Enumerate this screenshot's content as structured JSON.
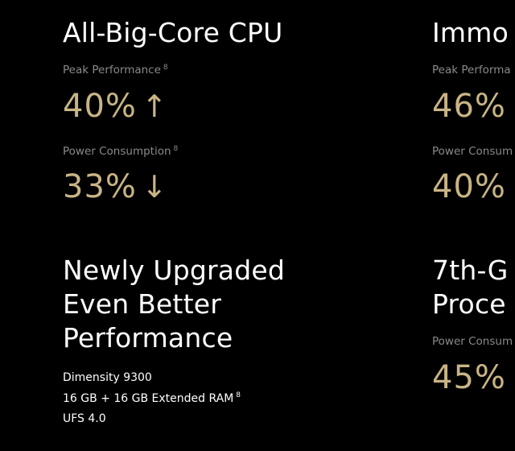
{
  "left_column": {
    "cpu_heading": "All-Big-Core CPU",
    "peak_label": "Peak Performance",
    "peak_note": "8",
    "peak_value": "40%",
    "peak_arrow": "↑",
    "power_label": "Power Consumption",
    "power_note": "8",
    "power_value": "33%",
    "power_arrow": "↓",
    "upgrade_heading_line1": "Newly Upgraded",
    "upgrade_heading_line2": "Even Better",
    "upgrade_heading_line3": "Performance",
    "spec_chip": "Dimensity 9300",
    "spec_ram": "16 GB + 16 GB Extended RAM",
    "spec_ram_note": "8",
    "spec_storage": "UFS 4.0"
  },
  "right_column": {
    "heading_top": "Immo",
    "peak_label": "Peak Performa",
    "peak_value": "46%",
    "power_label": "Power Consum",
    "power_value": "40%",
    "heading_bottom_line1": "7th-G",
    "heading_bottom_line2": "Proce",
    "power2_label": "Power Consum",
    "power2_value": "45%"
  },
  "colors": {
    "background": "#000000",
    "heading": "#ffffff",
    "label": "#8a8a8a",
    "accent_gold": "#c8b485"
  },
  "icons": {
    "up_arrow": "arrow-up-icon",
    "down_arrow": "arrow-down-icon"
  }
}
